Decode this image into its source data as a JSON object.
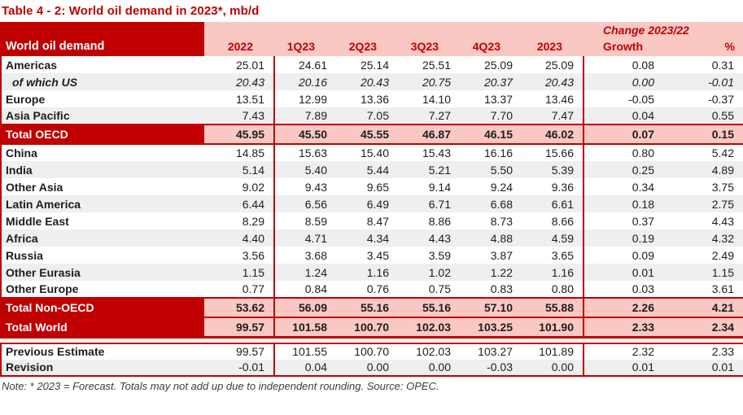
{
  "title": "Table 4 - 2: World oil demand in 2023*, mb/d",
  "colors": {
    "dark_red": "#C00000",
    "header_pink": "#FAC8C2",
    "alt_row_gray": "#EFEFEF"
  },
  "table": {
    "corner_label": "World oil demand",
    "change_group_label": "Change 2023/22",
    "columns": [
      "2022",
      "1Q23",
      "2Q23",
      "3Q23",
      "4Q23",
      "2023",
      "Growth",
      "%"
    ],
    "rows": [
      {
        "label": "Americas",
        "variant": "plain",
        "values": [
          "25.01",
          "24.61",
          "25.14",
          "25.51",
          "25.09",
          "25.09",
          "0.08",
          "0.31"
        ]
      },
      {
        "label": "of which US",
        "variant": "sub",
        "values": [
          "20.43",
          "20.16",
          "20.43",
          "20.75",
          "20.37",
          "20.43",
          "0.00",
          "-0.01"
        ]
      },
      {
        "label": "Europe",
        "variant": "plain",
        "values": [
          "13.51",
          "12.99",
          "13.36",
          "14.10",
          "13.37",
          "13.46",
          "-0.05",
          "-0.37"
        ]
      },
      {
        "label": "Asia Pacific",
        "variant": "alt",
        "values": [
          "7.43",
          "7.89",
          "7.05",
          "7.27",
          "7.70",
          "7.47",
          "0.04",
          "0.55"
        ]
      },
      {
        "label": "Total OECD",
        "variant": "total",
        "values": [
          "45.95",
          "45.50",
          "45.55",
          "46.87",
          "46.15",
          "46.02",
          "0.07",
          "0.15"
        ]
      },
      {
        "label": "China",
        "variant": "plain",
        "values": [
          "14.85",
          "15.63",
          "15.40",
          "15.43",
          "16.16",
          "15.66",
          "0.80",
          "5.42"
        ]
      },
      {
        "label": "India",
        "variant": "alt",
        "values": [
          "5.14",
          "5.40",
          "5.44",
          "5.21",
          "5.50",
          "5.39",
          "0.25",
          "4.89"
        ]
      },
      {
        "label": "Other Asia",
        "variant": "plain",
        "values": [
          "9.02",
          "9.43",
          "9.65",
          "9.14",
          "9.24",
          "9.36",
          "0.34",
          "3.75"
        ]
      },
      {
        "label": "Latin America",
        "variant": "alt",
        "values": [
          "6.44",
          "6.56",
          "6.49",
          "6.71",
          "6.68",
          "6.61",
          "0.18",
          "2.75"
        ]
      },
      {
        "label": "Middle East",
        "variant": "plain",
        "values": [
          "8.29",
          "8.59",
          "8.47",
          "8.86",
          "8.73",
          "8.66",
          "0.37",
          "4.43"
        ]
      },
      {
        "label": "Africa",
        "variant": "alt",
        "values": [
          "4.40",
          "4.71",
          "4.34",
          "4.43",
          "4.88",
          "4.59",
          "0.19",
          "4.32"
        ]
      },
      {
        "label": "Russia",
        "variant": "plain",
        "values": [
          "3.56",
          "3.68",
          "3.45",
          "3.59",
          "3.87",
          "3.65",
          "0.09",
          "2.49"
        ]
      },
      {
        "label": "Other Eurasia",
        "variant": "alt",
        "values": [
          "1.15",
          "1.24",
          "1.16",
          "1.02",
          "1.22",
          "1.16",
          "0.01",
          "1.15"
        ]
      },
      {
        "label": "Other Europe",
        "variant": "plain",
        "values": [
          "0.77",
          "0.84",
          "0.76",
          "0.75",
          "0.83",
          "0.80",
          "0.03",
          "3.61"
        ]
      },
      {
        "label": "Total Non-OECD",
        "variant": "total",
        "values": [
          "53.62",
          "56.09",
          "55.16",
          "55.16",
          "57.10",
          "55.88",
          "2.26",
          "4.21"
        ]
      },
      {
        "label": "Total World",
        "variant": "total-world",
        "values": [
          "99.57",
          "101.58",
          "100.70",
          "102.03",
          "103.25",
          "101.90",
          "2.33",
          "2.34"
        ]
      }
    ],
    "footer_rows": [
      {
        "label": "Previous Estimate",
        "variant": "plain",
        "values": [
          "99.57",
          "101.55",
          "100.70",
          "102.03",
          "103.27",
          "101.89",
          "2.32",
          "2.33"
        ]
      },
      {
        "label": "Revision",
        "variant": "alt",
        "values": [
          "-0.01",
          "0.04",
          "0.00",
          "0.00",
          "-0.03",
          "0.00",
          "0.01",
          "0.01"
        ]
      }
    ]
  },
  "note": "Note: * 2023 = Forecast. Totals may not add up due to independent rounding. Source: OPEC."
}
